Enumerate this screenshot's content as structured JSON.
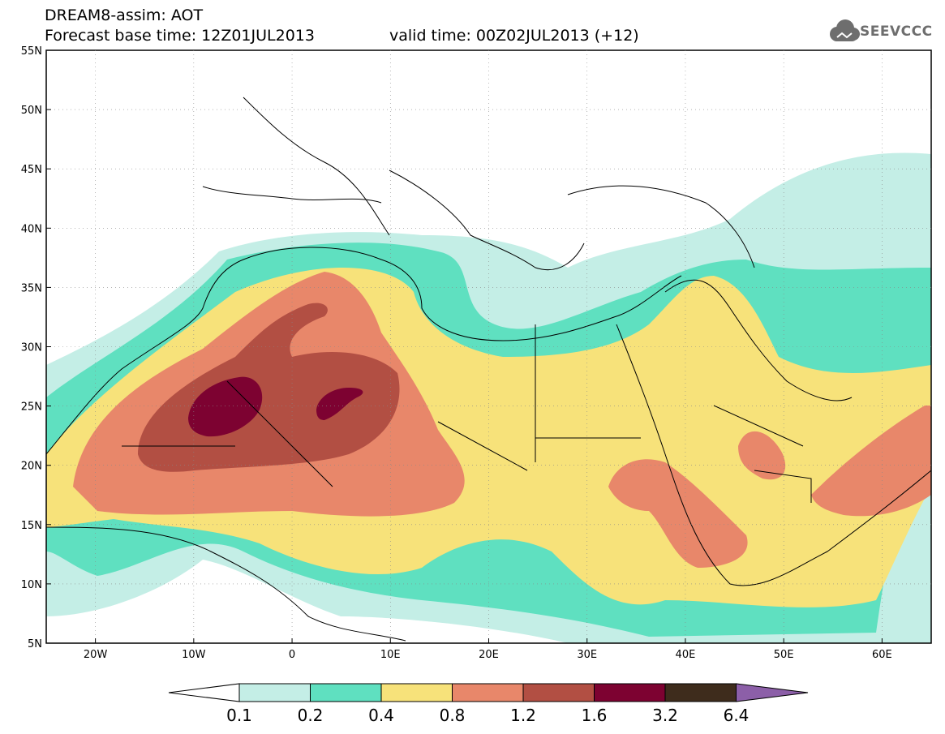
{
  "title": {
    "line1": "DREAM8-assim: AOT",
    "line2": "Forecast base time: 12Z01JUL2013",
    "valid": "valid time: 00Z02JUL2013 (+12)"
  },
  "logo": {
    "text": "SEEVCCC",
    "icon": "cloud-icon"
  },
  "map": {
    "lat_range": [
      5,
      55
    ],
    "lon_range": [
      -25,
      65
    ],
    "lat_labels": [
      "55N",
      "50N",
      "45N",
      "40N",
      "35N",
      "30N",
      "25N",
      "20N",
      "15N",
      "10N",
      "5N"
    ],
    "lat_values": [
      55,
      50,
      45,
      40,
      35,
      30,
      25,
      20,
      15,
      10,
      5
    ],
    "lon_labels": [
      "20W",
      "10W",
      "0",
      "10E",
      "20E",
      "30E",
      "40E",
      "50E",
      "60E"
    ],
    "lon_values": [
      -20,
      -10,
      0,
      10,
      20,
      30,
      40,
      50,
      60
    ],
    "grid": true
  },
  "colorbar": {
    "levels": [
      "0.1",
      "0.2",
      "0.4",
      "0.8",
      "1.2",
      "1.6",
      "3.2",
      "6.4"
    ],
    "colors": [
      "#c4eee6",
      "#5fe0c0",
      "#f7e27a",
      "#e8876a",
      "#b24f43",
      "#7d0231",
      "#3e2c1c"
    ],
    "under_color": "#ffffff",
    "over_color": "#8c5fa8"
  }
}
